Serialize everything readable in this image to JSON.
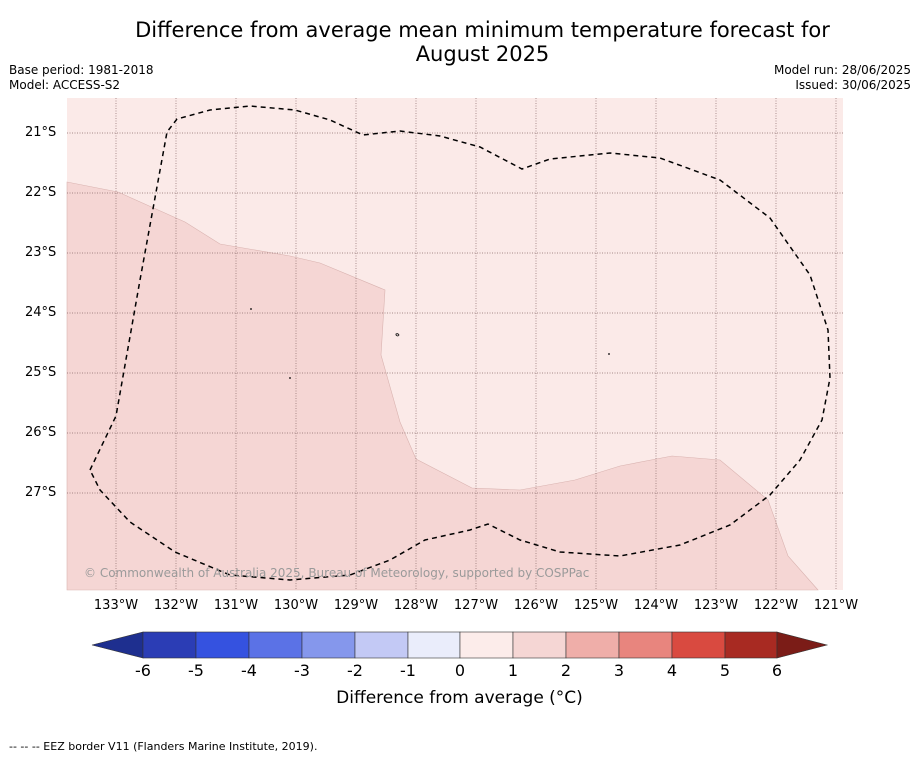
{
  "title_line1": "Difference from average mean minimum temperature forecast for",
  "title_line2": "August 2025",
  "meta_left": {
    "base_period": "Base period: 1981-2018",
    "model": "Model: ACCESS-S2"
  },
  "meta_right": {
    "model_run": "Model run: 28/06/2025",
    "issued": "Issued: 30/06/2025"
  },
  "map": {
    "latitude_labels": [
      "21°S",
      "22°S",
      "23°S",
      "24°S",
      "25°S",
      "26°S",
      "27°S"
    ],
    "longitude_labels": [
      "133°W",
      "132°W",
      "131°W",
      "130°W",
      "129°W",
      "128°W",
      "127°W",
      "126°W",
      "125°W",
      "124°W",
      "123°W",
      "122°W",
      "121°W"
    ],
    "colors": {
      "anomaly_0_to_1": "#fbeae8",
      "anomaly_1_to_2": "#f5d6d4",
      "gridline": "#7a5a5a",
      "eez_border": "#000000"
    },
    "regions": [
      {
        "name": "0 to 1 °C",
        "level": "0-1"
      },
      {
        "name": "1 to 2 °C",
        "level": "1-2"
      }
    ],
    "copyright": "© Commonwealth of Australia 2025, Bureau of Meteorology, supported by COSPPac"
  },
  "colorbar": {
    "ticks": [
      "-6",
      "-5",
      "-4",
      "-3",
      "-2",
      "-1",
      "0",
      "1",
      "2",
      "3",
      "4",
      "5",
      "6"
    ],
    "colors": [
      "#1e2f8f",
      "#2b3db5",
      "#3552e0",
      "#5b72e6",
      "#8597ec",
      "#c3c9f5",
      "#eaedfb",
      "#fcecea",
      "#f5d6d4",
      "#efaea9",
      "#e8857e",
      "#d94a40",
      "#a82a22",
      "#7b1c17"
    ],
    "label": "Difference from average (°C)"
  },
  "footnote": "--  --  -- EEZ border V11 (Flanders Marine Institute, 2019)."
}
